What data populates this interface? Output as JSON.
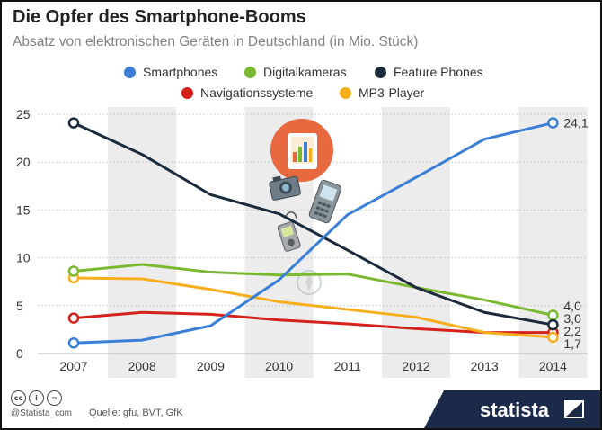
{
  "title": "Die Opfer des Smartphone-Booms",
  "subtitle": "Absatz von elektronischen Geräten in Deutschland (in Mio. Stück)",
  "brand": "statista",
  "credit": "@Statista_com",
  "source": "Quelle: gfu, BVT, GfK",
  "license_icons": [
    "cc",
    "by",
    "nd"
  ],
  "chart_data": {
    "type": "line",
    "x": [
      "2007",
      "2008",
      "2009",
      "2010",
      "2011",
      "2012",
      "2013",
      "2014"
    ],
    "ylim": [
      0,
      25
    ],
    "yticks": [
      "0",
      "5",
      "10",
      "15",
      "20",
      "25"
    ],
    "legend_position": "top",
    "series": [
      {
        "name": "Smartphones",
        "color": "#3a7fd5",
        "values": [
          1.1,
          1.4,
          2.9,
          7.7,
          14.5,
          18.4,
          22.4,
          24.1
        ],
        "end_label": "24,1"
      },
      {
        "name": "Digitalkameras",
        "color": "#7ab830",
        "values": [
          8.6,
          9.3,
          8.5,
          8.2,
          8.3,
          6.9,
          5.6,
          4.0
        ],
        "end_label": "4,0"
      },
      {
        "name": "Feature Phones",
        "color": "#1b2b3b",
        "values": [
          24.1,
          20.8,
          16.6,
          14.6,
          10.8,
          6.9,
          4.3,
          3.0
        ],
        "end_label": "3,0"
      },
      {
        "name": "Navigationssysteme",
        "color": "#d4221b",
        "values": [
          3.7,
          4.3,
          4.1,
          3.5,
          3.1,
          2.6,
          2.2,
          2.2
        ],
        "end_label": "2,2"
      },
      {
        "name": "MP3-Player",
        "color": "#f7ae1c",
        "values": [
          7.9,
          7.8,
          6.7,
          5.4,
          4.6,
          3.8,
          2.2,
          1.7
        ],
        "end_label": "1,7"
      }
    ]
  }
}
